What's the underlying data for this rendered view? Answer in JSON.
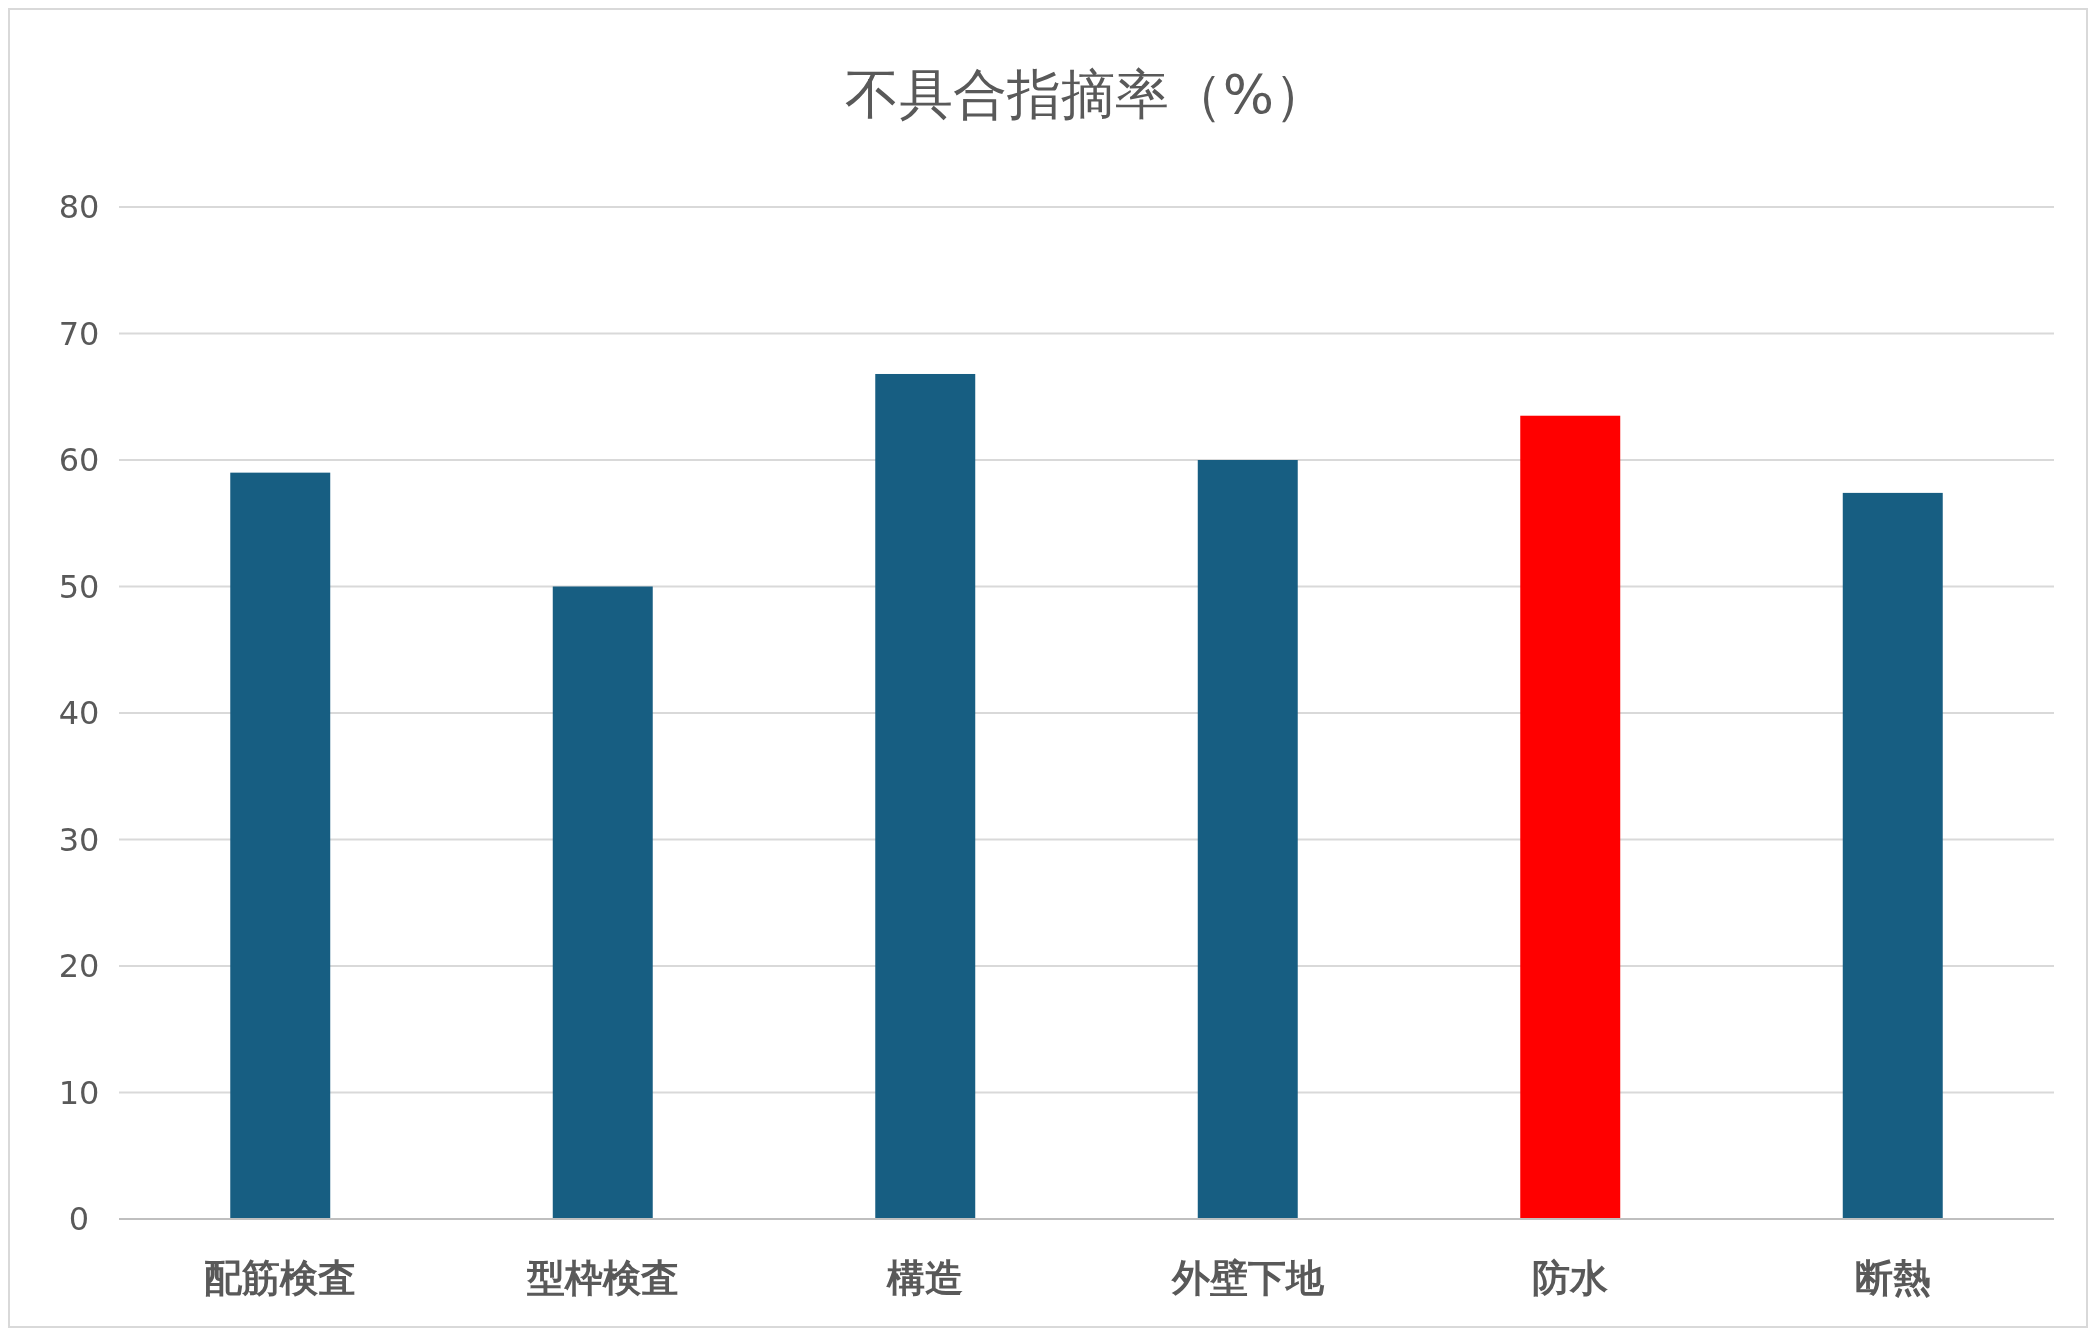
{
  "chart_data": {
    "type": "bar",
    "title": "不具合指摘率（%）",
    "categories": [
      "配筋検査",
      "型枠検査",
      "構造",
      "外壁下地",
      "防水",
      "断熱"
    ],
    "values": [
      59,
      50,
      66.8,
      60,
      63.5,
      57.4
    ],
    "colors": [
      "#175e82",
      "#175e82",
      "#175e82",
      "#175e82",
      "#ff0000",
      "#175e82"
    ],
    "ylim": [
      0,
      80
    ],
    "yticks": [
      0,
      10,
      20,
      30,
      40,
      50,
      60,
      70,
      80
    ],
    "grid": "y"
  }
}
